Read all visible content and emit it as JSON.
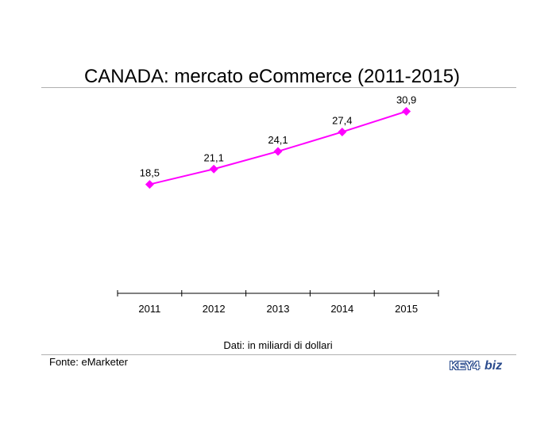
{
  "header": {
    "title": "CANADA: mercato eCommerce (2011-2015)"
  },
  "footer": {
    "note": "Dati: in miliardi di dollari",
    "source": "Fonte: eMarketer",
    "logo_key": "KEY4",
    "logo_biz": "biz"
  },
  "colors": {
    "series": "#ff00ff",
    "axis": "#000000",
    "rule": "#b0b0b0",
    "logo": "#2a4b8d"
  },
  "chart_data": {
    "type": "line",
    "title": "CANADA: mercato eCommerce (2011-2015)",
    "xlabel": "",
    "ylabel": "",
    "categories": [
      "2011",
      "2012",
      "2013",
      "2014",
      "2015"
    ],
    "values": [
      18.5,
      21.1,
      24.1,
      27.4,
      30.9
    ],
    "value_labels": [
      "18,5",
      "21,1",
      "24,1",
      "27,4",
      "30,9"
    ],
    "ylim": [
      0,
      35
    ],
    "grid": false,
    "legend": "none",
    "marker": "diamond"
  }
}
